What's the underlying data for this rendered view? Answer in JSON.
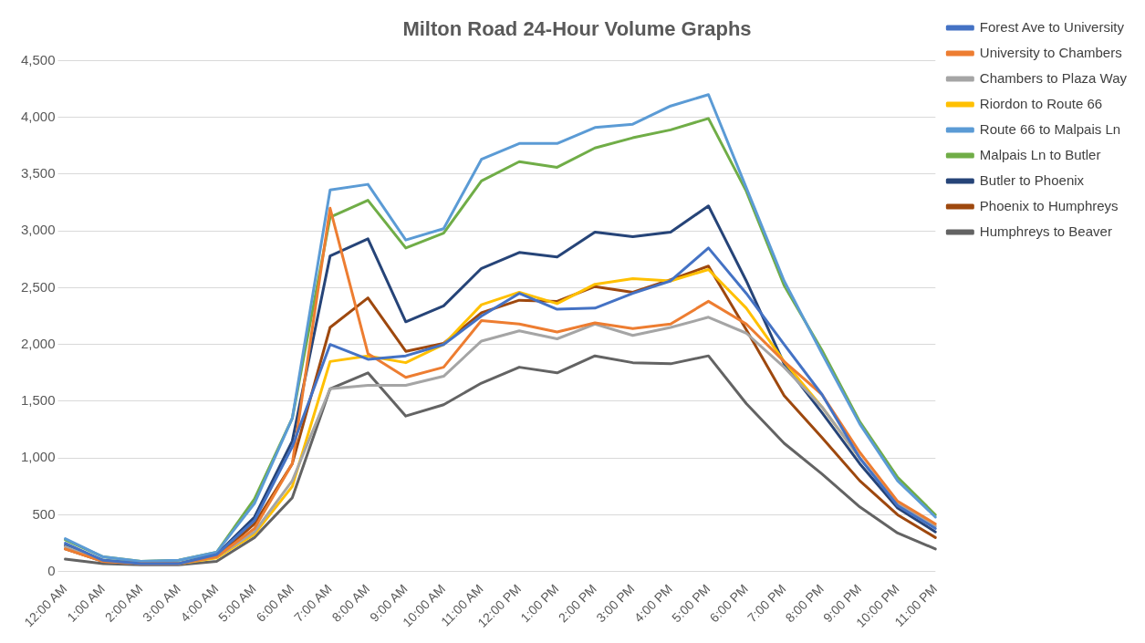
{
  "chart_data": {
    "type": "line",
    "title": "Milton Road 24-Hour Volume Graphs",
    "categories": [
      "12:00 AM",
      "1:00 AM",
      "2:00 AM",
      "3:00 AM",
      "4:00 AM",
      "5:00 AM",
      "6:00 AM",
      "7:00 AM",
      "8:00 AM",
      "9:00 AM",
      "10:00 AM",
      "11:00 AM",
      "12:00 PM",
      "1:00 PM",
      "2:00 PM",
      "3:00 PM",
      "4:00 PM",
      "5:00 PM",
      "6:00 PM",
      "7:00 PM",
      "8:00 PM",
      "9:00 PM",
      "10:00 PM",
      "11:00 PM"
    ],
    "series": [
      {
        "name": "Forest Ave to University",
        "color": "#4472c4",
        "values": [
          250,
          100,
          70,
          70,
          150,
          450,
          1100,
          2000,
          1870,
          1900,
          2000,
          2250,
          2450,
          2310,
          2320,
          2450,
          2560,
          2850,
          2450,
          2000,
          1560,
          1000,
          580,
          380
        ]
      },
      {
        "name": "University to Chambers",
        "color": "#ed7d31",
        "values": [
          200,
          90,
          70,
          70,
          130,
          380,
          950,
          3200,
          1920,
          1710,
          1800,
          2210,
          2180,
          2110,
          2190,
          2140,
          2180,
          2380,
          2180,
          1850,
          1560,
          1050,
          620,
          420
        ]
      },
      {
        "name": "Chambers to Plaza Way",
        "color": "#a5a5a5",
        "values": [
          220,
          90,
          70,
          70,
          130,
          350,
          800,
          1610,
          1640,
          1640,
          1720,
          2030,
          2120,
          2050,
          2180,
          2080,
          2150,
          2240,
          2100,
          1800,
          1450,
          1000,
          600,
          400
        ]
      },
      {
        "name": "Riordon to Route 66",
        "color": "#ffc000",
        "values": [
          null,
          null,
          null,
          70,
          120,
          330,
          750,
          1850,
          1900,
          1840,
          2000,
          2350,
          2460,
          2360,
          2530,
          2580,
          2560,
          2660,
          2320,
          1850,
          1450,
          1000,
          null,
          null
        ]
      },
      {
        "name": "Route 66 to Malpais Ln",
        "color": "#5b9bd5",
        "values": [
          290,
          130,
          90,
          100,
          170,
          600,
          1350,
          3360,
          3410,
          2920,
          3020,
          3630,
          3770,
          3770,
          3910,
          3940,
          4100,
          4200,
          3380,
          2560,
          1920,
          1300,
          800,
          480
        ]
      },
      {
        "name": "Malpais Ln to Butler",
        "color": "#70ad47",
        "values": [
          280,
          130,
          90,
          100,
          170,
          640,
          1350,
          3120,
          3270,
          2850,
          2980,
          3440,
          3610,
          3560,
          3730,
          3820,
          3890,
          3990,
          3350,
          2520,
          1950,
          1320,
          830,
          500
        ]
      },
      {
        "name": "Butler to Phoenix",
        "color": "#264478",
        "values": [
          230,
          100,
          70,
          70,
          150,
          480,
          1150,
          2780,
          2930,
          2200,
          2340,
          2670,
          2810,
          2770,
          2990,
          2950,
          2990,
          3220,
          2560,
          1830,
          1400,
          950,
          560,
          350
        ]
      },
      {
        "name": "Phoenix to Humphreys",
        "color": "#9e480e",
        "values": [
          200,
          90,
          70,
          70,
          130,
          420,
          950,
          2150,
          2410,
          1940,
          2010,
          2280,
          2390,
          2380,
          2510,
          2460,
          2570,
          2690,
          2130,
          1550,
          1180,
          800,
          500,
          300
        ]
      },
      {
        "name": "Humphreys to Beaver",
        "color": "#636363",
        "values": [
          110,
          70,
          60,
          60,
          90,
          300,
          650,
          1610,
          1750,
          1370,
          1470,
          1660,
          1800,
          1750,
          1900,
          1840,
          1830,
          1900,
          1480,
          1130,
          860,
          570,
          340,
          200
        ]
      }
    ],
    "ylim": [
      0,
      4500
    ],
    "yticks": [
      {
        "value": 0,
        "label": "0"
      },
      {
        "value": 500,
        "label": "500"
      },
      {
        "value": 1000,
        "label": "1,000"
      },
      {
        "value": 1500,
        "label": "1,500"
      },
      {
        "value": 2000,
        "label": "2,000"
      },
      {
        "value": 2500,
        "label": "2,500"
      },
      {
        "value": 3000,
        "label": "3,000"
      },
      {
        "value": 3500,
        "label": "3,500"
      },
      {
        "value": 4000,
        "label": "4,000"
      },
      {
        "value": 4500,
        "label": "4,500"
      }
    ],
    "grid": "y",
    "legend": "right",
    "marker": "none",
    "line_style": "solid"
  }
}
